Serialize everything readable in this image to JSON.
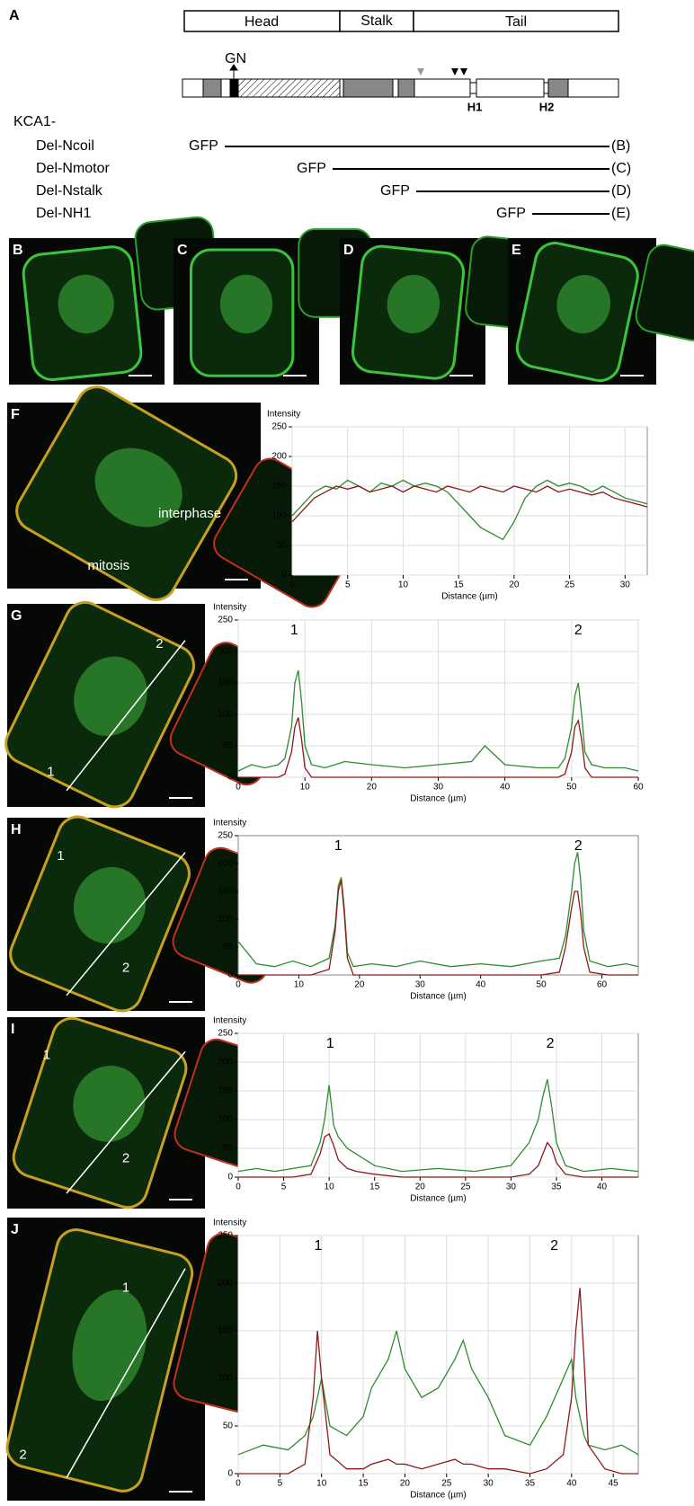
{
  "panel_a": {
    "label": "A",
    "domains": [
      "Head",
      "Stalk",
      "Tail"
    ],
    "gn": "GN",
    "h1": "H1",
    "h2": "H2",
    "prefix": "KCA1-",
    "constructs": [
      {
        "name": "Del-Ncoil",
        "tag": "GFP",
        "ref": "(B)"
      },
      {
        "name": "Del-Nmotor",
        "tag": "GFP",
        "ref": "(C)"
      },
      {
        "name": "Del-Nstalk",
        "tag": "GFP",
        "ref": "(D)"
      },
      {
        "name": "Del-NH1",
        "tag": "GFP",
        "ref": "(E)"
      }
    ]
  },
  "image_panels": [
    {
      "label": "B"
    },
    {
      "label": "C"
    },
    {
      "label": "D"
    },
    {
      "label": "E"
    }
  ],
  "chart_data": [
    {
      "type": "line",
      "panel": "F",
      "image_labels": [
        "interphase",
        "mitosis"
      ],
      "y_label": "Intensity",
      "x_label": "Distance (µm)",
      "x": [
        0,
        1,
        2,
        3,
        4,
        5,
        6,
        7,
        8,
        9,
        10,
        11,
        12,
        13,
        14,
        15,
        16,
        17,
        18,
        19,
        20,
        21,
        22,
        23,
        24,
        25,
        26,
        27,
        28,
        29,
        30,
        31,
        32
      ],
      "series": [
        {
          "color": "#2e8b2e",
          "values": [
            100,
            120,
            140,
            150,
            145,
            160,
            150,
            140,
            155,
            150,
            160,
            150,
            155,
            150,
            140,
            120,
            100,
            80,
            70,
            60,
            90,
            130,
            150,
            160,
            150,
            155,
            150,
            140,
            150,
            140,
            130,
            125,
            120
          ]
        },
        {
          "color": "#8b1a1a",
          "values": [
            90,
            110,
            130,
            140,
            150,
            145,
            150,
            140,
            145,
            150,
            140,
            150,
            145,
            140,
            150,
            145,
            140,
            150,
            145,
            140,
            150,
            145,
            140,
            150,
            140,
            145,
            140,
            135,
            140,
            130,
            125,
            120,
            115
          ]
        }
      ],
      "xlim": [
        0,
        32
      ],
      "xticks": [
        0,
        5,
        10,
        15,
        20,
        25,
        30
      ],
      "ylim": [
        0,
        250
      ],
      "yticks": [
        0,
        50,
        100,
        150,
        200,
        250
      ],
      "grid": true,
      "annotations": []
    },
    {
      "type": "line",
      "panel": "G",
      "image_labels": [
        "1",
        "2"
      ],
      "y_label": "Intensity",
      "x_label": "Distance (µm)",
      "x": [
        0,
        2,
        4,
        6,
        7,
        8,
        8.5,
        9,
        9.5,
        10,
        11,
        13,
        16,
        20,
        25,
        30,
        35,
        37,
        40,
        45,
        48,
        49,
        50,
        50.5,
        51,
        51.5,
        52,
        53,
        55,
        58,
        60
      ],
      "series": [
        {
          "color": "#2e8b2e",
          "values": [
            10,
            20,
            15,
            20,
            30,
            80,
            150,
            170,
            120,
            50,
            20,
            15,
            25,
            20,
            15,
            20,
            25,
            50,
            20,
            15,
            15,
            30,
            80,
            130,
            150,
            100,
            40,
            20,
            15,
            15,
            10
          ]
        },
        {
          "color": "#8b1a1a",
          "values": [
            0,
            0,
            0,
            0,
            5,
            40,
            80,
            95,
            60,
            15,
            0,
            0,
            0,
            0,
            0,
            0,
            0,
            0,
            0,
            0,
            0,
            5,
            40,
            80,
            90,
            60,
            15,
            0,
            0,
            0,
            0
          ]
        }
      ],
      "xlim": [
        0,
        60
      ],
      "xticks": [
        0,
        10,
        20,
        30,
        40,
        50,
        60
      ],
      "ylim": [
        0,
        250
      ],
      "yticks": [
        0,
        50,
        100,
        150,
        200,
        250
      ],
      "grid": true,
      "annotations": [
        "1",
        "2"
      ]
    },
    {
      "type": "line",
      "panel": "H",
      "image_labels": [
        "1",
        "2"
      ],
      "y_label": "Intensity",
      "x_label": "Distance (µm)",
      "x": [
        0,
        3,
        6,
        9,
        12,
        15,
        16,
        16.5,
        17,
        17.5,
        18,
        19,
        22,
        26,
        30,
        35,
        40,
        45,
        50,
        53,
        54,
        55,
        55.5,
        56,
        56.5,
        57,
        58,
        61,
        64,
        66
      ],
      "series": [
        {
          "color": "#2e8b2e",
          "values": [
            60,
            20,
            15,
            25,
            15,
            30,
            90,
            160,
            175,
            120,
            40,
            15,
            20,
            15,
            25,
            15,
            20,
            15,
            25,
            30,
            70,
            150,
            200,
            220,
            170,
            80,
            25,
            15,
            20,
            15
          ]
        },
        {
          "color": "#8b1a1a",
          "values": [
            0,
            0,
            0,
            0,
            0,
            10,
            80,
            150,
            170,
            110,
            30,
            0,
            0,
            0,
            0,
            0,
            0,
            0,
            0,
            5,
            50,
            120,
            150,
            150,
            110,
            50,
            5,
            0,
            0,
            0
          ]
        }
      ],
      "xlim": [
        0,
        66
      ],
      "xticks": [
        0,
        10,
        20,
        30,
        40,
        50,
        60
      ],
      "ylim": [
        0,
        250
      ],
      "yticks": [
        0,
        50,
        100,
        150,
        200,
        250
      ],
      "grid": false,
      "annotations": [
        "1",
        "2"
      ]
    },
    {
      "type": "line",
      "panel": "I",
      "image_labels": [
        "1",
        "2"
      ],
      "y_label": "Intensity",
      "x_label": "Distance (µm)",
      "x": [
        0,
        2,
        4,
        6,
        8,
        9,
        9.5,
        10,
        10.5,
        11,
        12,
        13,
        15,
        18,
        22,
        26,
        30,
        32,
        33,
        33.5,
        34,
        34.5,
        35,
        36,
        38,
        41,
        44
      ],
      "series": [
        {
          "color": "#2e8b2e",
          "values": [
            10,
            15,
            10,
            15,
            20,
            60,
            100,
            160,
            90,
            70,
            50,
            40,
            20,
            10,
            15,
            10,
            20,
            60,
            100,
            140,
            170,
            120,
            60,
            20,
            10,
            15,
            10
          ]
        },
        {
          "color": "#8b1a1a",
          "values": [
            0,
            0,
            0,
            0,
            5,
            40,
            70,
            75,
            55,
            30,
            15,
            10,
            5,
            0,
            0,
            0,
            0,
            5,
            20,
            40,
            60,
            50,
            25,
            5,
            0,
            0,
            0
          ]
        }
      ],
      "xlim": [
        0,
        44
      ],
      "xticks": [
        0,
        5,
        10,
        15,
        20,
        25,
        30,
        35,
        40
      ],
      "ylim": [
        0,
        250
      ],
      "yticks": [
        0,
        50,
        100,
        150,
        200,
        250
      ],
      "grid": true,
      "annotations": [
        "1",
        "2"
      ]
    },
    {
      "type": "line",
      "panel": "J",
      "image_labels": [
        "1",
        "2"
      ],
      "y_label": "Intensity",
      "x_label": "Distance (µm)",
      "x": [
        0,
        3,
        6,
        8,
        9,
        9.5,
        10,
        11,
        13,
        15,
        16,
        18,
        19,
        20,
        22,
        24,
        26,
        27,
        28,
        30,
        32,
        35,
        37,
        39,
        40,
        40.5,
        41,
        41.5,
        42,
        44,
        46,
        48
      ],
      "series": [
        {
          "color": "#2e8b2e",
          "values": [
            20,
            30,
            25,
            40,
            60,
            80,
            100,
            50,
            40,
            60,
            90,
            120,
            150,
            110,
            80,
            90,
            120,
            140,
            110,
            80,
            40,
            30,
            60,
            100,
            120,
            80,
            60,
            40,
            30,
            25,
            30,
            20
          ]
        },
        {
          "color": "#8b1a1a",
          "values": [
            0,
            0,
            0,
            10,
            80,
            150,
            100,
            20,
            5,
            5,
            10,
            15,
            10,
            10,
            5,
            10,
            15,
            10,
            10,
            5,
            5,
            0,
            5,
            20,
            80,
            150,
            195,
            120,
            30,
            5,
            0,
            0
          ]
        }
      ],
      "xlim": [
        0,
        48
      ],
      "xticks": [
        0,
        5,
        10,
        15,
        20,
        25,
        30,
        35,
        40,
        45
      ],
      "ylim": [
        0,
        250
      ],
      "yticks": [
        0,
        50,
        100,
        150,
        200,
        250
      ],
      "grid": true,
      "annotations": [
        "1",
        "2"
      ]
    }
  ]
}
